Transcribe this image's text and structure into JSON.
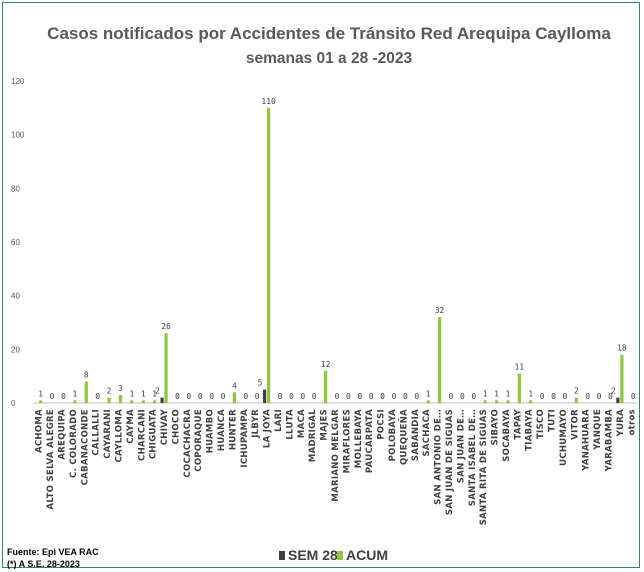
{
  "chart_data": {
    "type": "bar",
    "title": "Casos notificados  por Accidentes de Tránsito Red Arequipa Caylloma",
    "subtitle": "semanas 01 a 28 -2023",
    "ylim": [
      0,
      120
    ],
    "yticks": [
      0,
      20,
      40,
      60,
      80,
      100,
      120
    ],
    "grid": false,
    "legend_position": "bottom",
    "categories": [
      "ACHOMA",
      "ALTO SELVA ALEGRE",
      "AREQUIPA",
      "C. COLORADO",
      "CABANACONDE",
      "CALLALLI",
      "CAYARANI",
      "CAYLLOMA",
      "CAYMA",
      "CHARCANI",
      "CHIGUATA",
      "CHIVAY",
      "CHOCO",
      "COCACHACRA",
      "COPORAQUE",
      "HUAMBO",
      "HUANCA",
      "HUNTER",
      "ICHUPAMPA",
      "JLBYR",
      "LA JOYA",
      "LARI",
      "LLUTA",
      "MACA",
      "MADRIGAL",
      "MAJES",
      "MARIANO MELGAR",
      "MIRAFLORES",
      "MOLLEBAYA",
      "PAUCARPATA",
      "POCSI",
      "POLOBAYA",
      "QUEQUEÑA",
      "SABANDIA",
      "SACHACA",
      "SAN ANTONIO DE…",
      "SAN JUAN DE SIGUAS",
      "SAN JUAN DE…",
      "SANTA ISABEL DE…",
      "SANTA RITA DE SIGUAS",
      "SIBAYO",
      "SOCABAYA",
      "TAPAY",
      "TIABAYA",
      "TISCO",
      "TUTI",
      "UCHUMAYO",
      "VITOR",
      "YANAHUARA",
      "YANQUE",
      "YARABAMBA",
      "YURA",
      "otros"
    ],
    "series": [
      {
        "name": "SEM 28",
        "color": "#404040",
        "values": [
          0,
          0,
          0,
          0,
          0,
          0,
          0,
          0,
          0,
          0,
          0,
          2,
          0,
          0,
          0,
          0,
          0,
          0,
          0,
          0,
          5,
          0,
          0,
          0,
          0,
          0,
          0,
          0,
          0,
          0,
          0,
          0,
          0,
          0,
          0,
          0,
          0,
          0,
          0,
          0,
          0,
          0,
          0,
          0,
          0,
          0,
          0,
          0,
          0,
          0,
          0,
          2,
          0
        ]
      },
      {
        "name": "ACUM",
        "color": "#8dc63f",
        "values": [
          1,
          0,
          0,
          1,
          8,
          0,
          2,
          3,
          1,
          1,
          1,
          26,
          0,
          0,
          0,
          0,
          0,
          4,
          0,
          0,
          110,
          0,
          0,
          0,
          0,
          12,
          0,
          0,
          0,
          0,
          0,
          0,
          0,
          0,
          1,
          32,
          0,
          0,
          0,
          1,
          1,
          1,
          11,
          1,
          0,
          0,
          0,
          2,
          0,
          0,
          0,
          18,
          0
        ]
      }
    ],
    "data_labels": {
      "SEM 28": [
        "",
        "",
        "",
        "",
        "",
        "",
        "",
        "",
        "",
        "",
        "",
        "2",
        "",
        "",
        "",
        "",
        "",
        "",
        "",
        "",
        "5",
        "",
        "",
        "",
        "",
        "",
        "",
        "",
        "",
        "",
        "",
        "",
        "",
        "",
        "",
        "",
        "",
        "",
        "",
        "",
        "",
        "",
        "",
        "",
        "",
        "",
        "",
        "",
        "",
        "",
        "",
        "2",
        ""
      ],
      "ACUM": [
        "1",
        "0",
        "0",
        "1",
        "8",
        "0",
        "2",
        "3",
        "1",
        "1",
        "1",
        "26",
        "0",
        "0",
        "0",
        "0",
        "0",
        "4",
        "0",
        "0",
        "110",
        "0",
        "0",
        "0",
        "0",
        "12",
        "0",
        "0",
        "0",
        "0",
        "0",
        "0",
        "0",
        "0",
        "1",
        "32",
        "0",
        "0",
        "0",
        "1",
        "1",
        "1",
        "11",
        "1",
        "0",
        "0",
        "0",
        "2",
        "0",
        "0",
        "0",
        "18",
        "0"
      ]
    }
  },
  "source": {
    "line1": "Fuente: Epi VEA RAC",
    "line2": "(*) A S.E. 28-2023"
  }
}
